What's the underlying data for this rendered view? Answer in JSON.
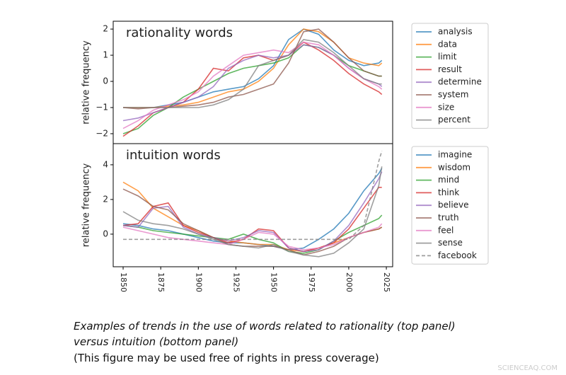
{
  "chart_data": [
    {
      "type": "line",
      "annotation": "rationality words",
      "ylabel": "relative frequency",
      "x": [
        1850,
        1860,
        1870,
        1880,
        1890,
        1900,
        1910,
        1920,
        1930,
        1940,
        1950,
        1960,
        1970,
        1980,
        1990,
        2000,
        2010,
        2020,
        2022
      ],
      "xlim": [
        1843.4,
        2029.2
      ],
      "ylim": [
        -2.38,
        2.3
      ],
      "yticks": [
        {
          "value": -2,
          "label": "−2"
        },
        {
          "value": -1,
          "label": "−1"
        },
        0,
        1,
        2
      ],
      "legend": "outside-right",
      "series": [
        {
          "name": "analysis",
          "color": "#1f77b4",
          "values": [
            -1.0,
            -1.0,
            -1.0,
            -0.9,
            -0.8,
            -0.6,
            -0.4,
            -0.3,
            -0.2,
            0.1,
            0.6,
            1.6,
            2.0,
            1.8,
            1.2,
            0.8,
            0.6,
            0.7,
            0.8
          ]
        },
        {
          "name": "data",
          "color": "#ff7f0e",
          "values": [
            -1.0,
            -1.0,
            -1.0,
            -0.95,
            -0.9,
            -0.8,
            -0.6,
            -0.4,
            -0.3,
            0,
            0.5,
            1.4,
            2.0,
            1.9,
            1.5,
            0.9,
            0.7,
            0.6,
            0.7
          ]
        },
        {
          "name": "limit",
          "color": "#2ca02c",
          "values": [
            -2.0,
            -1.8,
            -1.3,
            -1.0,
            -0.6,
            -0.3,
            0,
            0.3,
            0.5,
            0.6,
            0.7,
            0.9,
            1.4,
            1.3,
            1.0,
            0.6,
            0.4,
            0.2,
            0.2
          ]
        },
        {
          "name": "result",
          "color": "#d62728",
          "values": [
            -2.1,
            -1.7,
            -1.2,
            -1.0,
            -0.8,
            -0.3,
            0.5,
            0.4,
            0.9,
            1.0,
            0.8,
            1.0,
            1.5,
            1.2,
            0.8,
            0.3,
            -0.1,
            -0.4,
            -0.5
          ]
        },
        {
          "name": "determine",
          "color": "#9467bd",
          "values": [
            -1.5,
            -1.4,
            -1.2,
            -1.0,
            -0.8,
            -0.6,
            -0.2,
            0.5,
            0.8,
            1.0,
            0.9,
            1.0,
            1.4,
            1.3,
            1.0,
            0.5,
            0.1,
            -0.1,
            -0.2
          ]
        },
        {
          "name": "system",
          "color": "#8c564b",
          "values": [
            -1.0,
            -1.05,
            -1.0,
            -1.0,
            -0.95,
            -0.9,
            -0.8,
            -0.6,
            -0.5,
            -0.3,
            -0.1,
            0.7,
            1.9,
            2.0,
            1.5,
            0.9,
            0.4,
            0.2,
            0.2
          ]
        },
        {
          "name": "size",
          "color": "#e377c2",
          "values": [
            -1.8,
            -1.5,
            -1.1,
            -0.9,
            -0.7,
            -0.4,
            0.2,
            0.6,
            1.0,
            1.1,
            1.2,
            1.1,
            1.5,
            1.4,
            1.0,
            0.5,
            0.1,
            -0.2,
            -0.3
          ]
        },
        {
          "name": "percent",
          "color": "#7f7f7f",
          "values": [
            -1.0,
            -1.0,
            -1.0,
            -1.0,
            -1.0,
            -1.0,
            -0.9,
            -0.7,
            -0.3,
            0.6,
            0.8,
            1.0,
            1.6,
            1.5,
            1.1,
            0.6,
            0.1,
            -0.1,
            -0.1
          ]
        }
      ]
    },
    {
      "type": "line",
      "annotation": "intuition words",
      "ylabel": "relative frequency",
      "x": [
        1850,
        1860,
        1870,
        1880,
        1890,
        1900,
        1910,
        1920,
        1930,
        1940,
        1950,
        1960,
        1970,
        1980,
        1990,
        2000,
        2010,
        2020,
        2022
      ],
      "xlim": [
        1843.4,
        2029.2
      ],
      "ylim": [
        -1.88,
        5.22
      ],
      "xticks": [
        1850,
        1875,
        1900,
        1925,
        1950,
        1975,
        2000,
        2025
      ],
      "yticks": [
        0,
        2,
        4
      ],
      "legend": "outside-right",
      "series": [
        {
          "name": "imagine",
          "color": "#1f77b4",
          "values": [
            0.6,
            0.5,
            0.3,
            0.2,
            0,
            -0.2,
            -0.4,
            -0.5,
            -0.5,
            -0.6,
            -0.7,
            -0.9,
            -0.8,
            -0.3,
            0.3,
            1.2,
            2.5,
            3.5,
            3.8
          ]
        },
        {
          "name": "wisdom",
          "color": "#ff7f0e",
          "values": [
            3.0,
            2.5,
            1.5,
            1.0,
            0.5,
            0.2,
            -0.2,
            -0.4,
            -0.5,
            -0.6,
            -0.6,
            -0.9,
            -1.0,
            -0.8,
            -0.5,
            -0.2,
            0.1,
            0.3,
            0.4
          ]
        },
        {
          "name": "mind",
          "color": "#2ca02c",
          "values": [
            0.5,
            0.4,
            0.2,
            0.1,
            0,
            -0.1,
            -0.2,
            -0.3,
            0,
            -0.3,
            -0.5,
            -1.0,
            -1.1,
            -0.9,
            -0.4,
            0.1,
            0.5,
            0.9,
            1.1
          ]
        },
        {
          "name": "think",
          "color": "#d62728",
          "values": [
            0.5,
            0.6,
            1.6,
            1.8,
            0.5,
            0.1,
            -0.2,
            -0.5,
            -0.3,
            0.3,
            0.2,
            -0.8,
            -1.0,
            -0.8,
            -0.5,
            0.3,
            1.5,
            2.7,
            2.7
          ]
        },
        {
          "name": "believe",
          "color": "#9467bd",
          "values": [
            0.5,
            0.4,
            1.5,
            1.6,
            0.4,
            0,
            -0.2,
            -0.4,
            -0.2,
            0.2,
            0.1,
            -0.8,
            -1.0,
            -0.9,
            -0.4,
            0.5,
            1.8,
            3.2,
            3.6
          ]
        },
        {
          "name": "truth",
          "color": "#8c564b",
          "values": [
            2.6,
            2.2,
            1.6,
            1.4,
            0.6,
            0.2,
            -0.2,
            -0.6,
            -0.7,
            -0.7,
            -0.7,
            -0.9,
            -1.2,
            -1.0,
            -0.7,
            -0.2,
            0.1,
            0.3,
            0.4
          ]
        },
        {
          "name": "feel",
          "color": "#e377c2",
          "values": [
            0.4,
            0.2,
            0,
            -0.2,
            -0.3,
            -0.4,
            -0.5,
            -0.6,
            -0.3,
            0.1,
            0,
            -0.7,
            -0.9,
            -0.8,
            -0.6,
            -0.2,
            0.1,
            0.4,
            0.6
          ]
        },
        {
          "name": "sense",
          "color": "#7f7f7f",
          "values": [
            1.3,
            0.8,
            0.6,
            0.5,
            0.3,
            0,
            -0.3,
            -0.6,
            -0.7,
            -0.8,
            -0.6,
            -1.0,
            -1.2,
            -1.3,
            -1.1,
            -0.5,
            0.3,
            2.8,
            3.9
          ]
        },
        {
          "name": "facebook",
          "color": "#7f7f7f",
          "linestyle": "dashed",
          "values": [
            -0.3,
            -0.3,
            -0.3,
            -0.3,
            -0.3,
            -0.3,
            -0.3,
            -0.3,
            -0.3,
            -0.3,
            -0.3,
            -0.3,
            -0.3,
            -0.3,
            -0.3,
            -0.3,
            0.5,
            4.2,
            4.8
          ]
        }
      ]
    }
  ],
  "caption": {
    "lines": [
      "Examples of trends in the use of words related to rationality (top panel)",
      "versus intuition (bottom panel)"
    ],
    "note": "(This figure may be used free of rights in press coverage)"
  },
  "watermark": "SCIENCEAQ.COM"
}
